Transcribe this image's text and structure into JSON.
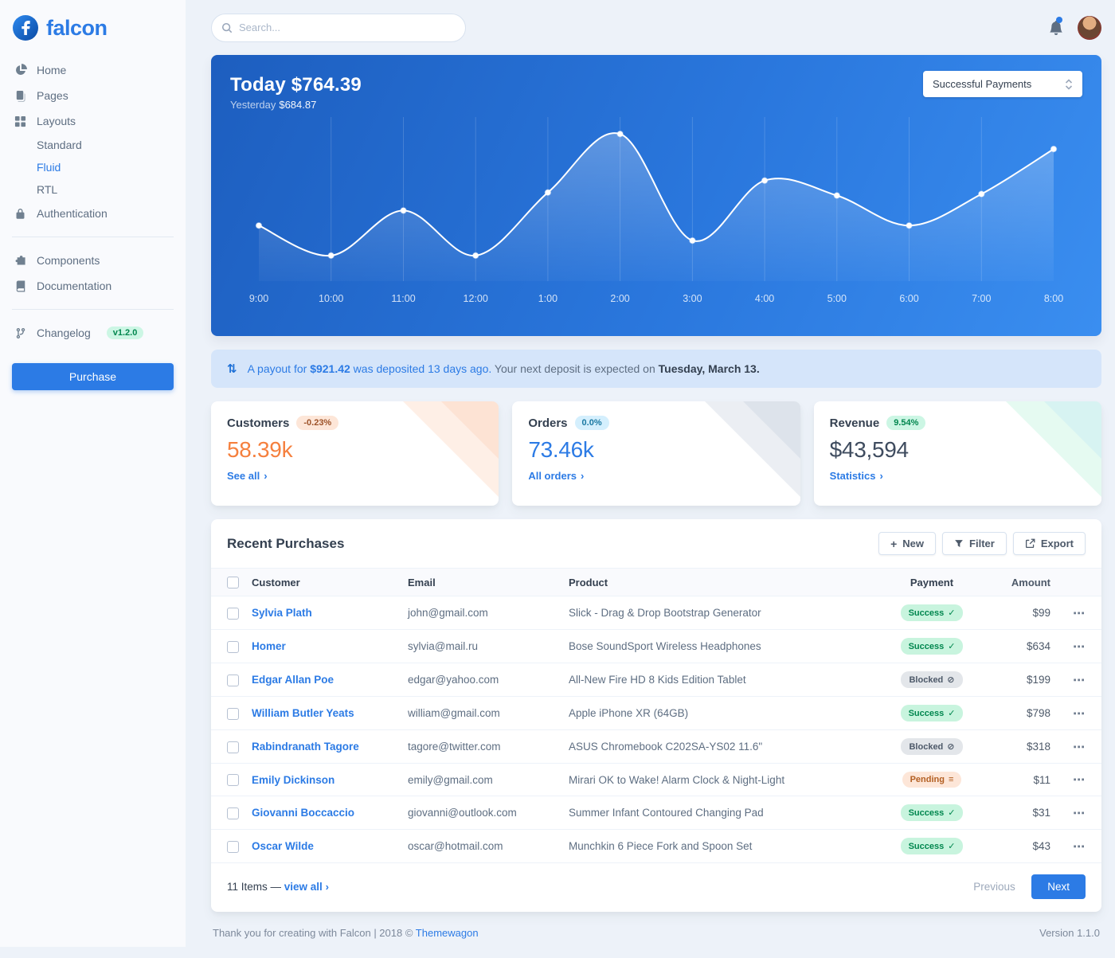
{
  "colors": {
    "primary": "#2c7be5",
    "chart_gradient_start": "#1d5ebf",
    "chart_gradient_end": "#3a8ef0",
    "customers_value": "#f5803e",
    "orders_value": "#2c7be5",
    "revenue_value": "#3f4c5f",
    "success_badge_text": "#00864e",
    "warning_badge_text": "#9d5228"
  },
  "icons": {
    "chevron_right": "›",
    "dots": "⋯",
    "check": "✓",
    "ban": "⊘",
    "stream": "≡",
    "plus": "+",
    "payout": "⇅"
  },
  "brand": {
    "name": "falcon"
  },
  "topbar": {
    "search_placeholder": "Search..."
  },
  "sidebar": {
    "home": "Home",
    "pages": "Pages",
    "layouts": "Layouts",
    "standard": "Standard",
    "fluid": "Fluid",
    "rtl": "RTL",
    "authentication": "Authentication",
    "components": "Components",
    "documentation": "Documentation",
    "changelog": "Changelog",
    "changelog_badge": "v1.2.0",
    "purchase": "Purchase"
  },
  "chart_card": {
    "today": "Today $764.39",
    "yesterday_label": "Yesterday",
    "yesterday_value": "$684.87",
    "selector": "Successful Payments"
  },
  "chart_data": {
    "type": "line",
    "title": "Today $764.39",
    "subtitle": "Yesterday $684.87",
    "series_name": "Successful Payments",
    "x": [
      "9:00",
      "10:00",
      "11:00",
      "12:00",
      "1:00",
      "2:00",
      "3:00",
      "4:00",
      "5:00",
      "6:00",
      "7:00",
      "8:00"
    ],
    "values": [
      37,
      17,
      47,
      17,
      59,
      98,
      27,
      67,
      57,
      37,
      58,
      88
    ],
    "ylim": [
      0,
      105
    ],
    "grid": "vertical",
    "legend_position": "none",
    "line_color": "#ffffff"
  },
  "alert": {
    "link_prefix": "A payout for ",
    "amount": "$921.42",
    "link_suffix": " was deposited 13 days ago.",
    "text_mid": " Your next deposit is expected on ",
    "date": "Tuesday, March 13."
  },
  "stats": [
    {
      "title": "Customers",
      "badge": "-0.23%",
      "value": "58.39k",
      "link": "See all"
    },
    {
      "title": "Orders",
      "badge": "0.0%",
      "value": "73.46k",
      "link": "All orders"
    },
    {
      "title": "Revenue",
      "badge": "9.54%",
      "value": "$43,594",
      "link": "Statistics"
    }
  ],
  "table": {
    "title": "Recent Purchases",
    "new_label": "New",
    "filter_label": "Filter",
    "export_label": "Export",
    "columns": {
      "customer": "Customer",
      "email": "Email",
      "product": "Product",
      "payment": "Payment",
      "amount": "Amount"
    },
    "rows": [
      {
        "customer": "Sylvia Plath",
        "email": "john@gmail.com",
        "product": "Slick - Drag & Drop Bootstrap Generator",
        "payment": "Success",
        "payment_type": "success",
        "amount": "$99"
      },
      {
        "customer": "Homer",
        "email": "sylvia@mail.ru",
        "product": "Bose SoundSport Wireless Headphones",
        "payment": "Success",
        "payment_type": "success",
        "amount": "$634"
      },
      {
        "customer": "Edgar Allan Poe",
        "email": "edgar@yahoo.com",
        "product": "All-New Fire HD 8 Kids Edition Tablet",
        "payment": "Blocked",
        "payment_type": "blocked",
        "amount": "$199"
      },
      {
        "customer": "William Butler Yeats",
        "email": "william@gmail.com",
        "product": "Apple iPhone XR (64GB)",
        "payment": "Success",
        "payment_type": "success",
        "amount": "$798"
      },
      {
        "customer": "Rabindranath Tagore",
        "email": "tagore@twitter.com",
        "product": "ASUS Chromebook C202SA-YS02 11.6\"",
        "payment": "Blocked",
        "payment_type": "blocked",
        "amount": "$318"
      },
      {
        "customer": "Emily Dickinson",
        "email": "emily@gmail.com",
        "product": "Mirari OK to Wake! Alarm Clock & Night-Light",
        "payment": "Pending",
        "payment_type": "pending",
        "amount": "$11"
      },
      {
        "customer": "Giovanni Boccaccio",
        "email": "giovanni@outlook.com",
        "product": "Summer Infant Contoured Changing Pad",
        "payment": "Success",
        "payment_type": "success",
        "amount": "$31"
      },
      {
        "customer": "Oscar Wilde",
        "email": "oscar@hotmail.com",
        "product": "Munchkin 6 Piece Fork and Spoon Set",
        "payment": "Success",
        "payment_type": "success",
        "amount": "$43"
      }
    ],
    "items_count": "11 Items — ",
    "view_all": "view all",
    "previous": "Previous",
    "next": "Next"
  },
  "footer": {
    "thanks": "Thank you for creating with Falcon | 2018 © ",
    "brand_link": "Themewagon",
    "version": "Version 1.1.0"
  }
}
